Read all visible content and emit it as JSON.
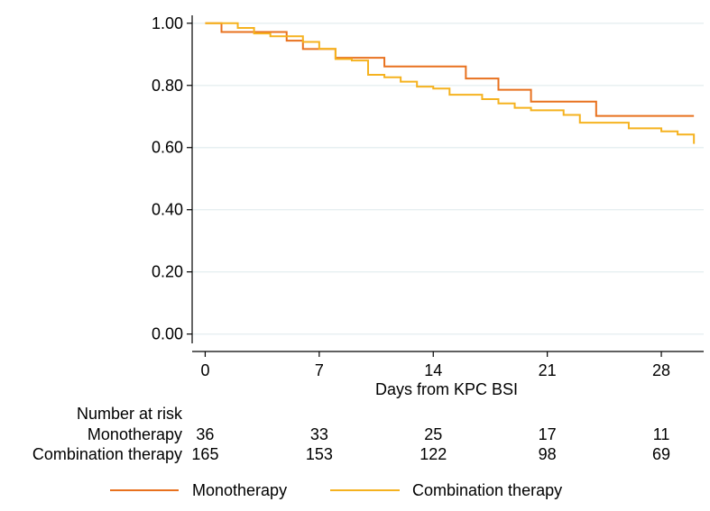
{
  "chart_data": {
    "type": "line",
    "subtype": "kaplan-meier",
    "xlabel": "Days from KPC BSI",
    "ylabel": "",
    "xlim": [
      -0.8,
      30.6
    ],
    "ylim": [
      -0.03,
      1.04
    ],
    "x_ticks": [
      0,
      7,
      14,
      21,
      28
    ],
    "x_tick_labels": [
      "0",
      "7",
      "14",
      "21",
      "28"
    ],
    "y_ticks": [
      0,
      0.2,
      0.4,
      0.6,
      0.8,
      1.0
    ],
    "y_tick_labels": [
      "0.00",
      "0.20",
      "0.40",
      "0.60",
      "0.80",
      "1.00"
    ],
    "grid": true,
    "series": [
      {
        "name": "Monotherapy",
        "color": "#E8711E",
        "steps": [
          [
            0,
            1.0
          ],
          [
            1,
            0.972
          ],
          [
            5,
            0.944
          ],
          [
            6,
            0.917
          ],
          [
            8,
            0.889
          ],
          [
            11,
            0.861
          ],
          [
            16,
            0.822
          ],
          [
            18,
            0.786
          ],
          [
            20,
            0.748
          ],
          [
            24,
            0.702
          ],
          [
            30,
            0.702
          ]
        ]
      },
      {
        "name": "Combination therapy",
        "color": "#F5B21F",
        "steps": [
          [
            0,
            1.0
          ],
          [
            2,
            0.985
          ],
          [
            3,
            0.967
          ],
          [
            4,
            0.958
          ],
          [
            5,
            0.958
          ],
          [
            6,
            0.94
          ],
          [
            7,
            0.918
          ],
          [
            8,
            0.885
          ],
          [
            9,
            0.88
          ],
          [
            10,
            0.834
          ],
          [
            11,
            0.826
          ],
          [
            12,
            0.812
          ],
          [
            13,
            0.796
          ],
          [
            14,
            0.79
          ],
          [
            15,
            0.77
          ],
          [
            17,
            0.756
          ],
          [
            18,
            0.742
          ],
          [
            19,
            0.728
          ],
          [
            20,
            0.72
          ],
          [
            22,
            0.705
          ],
          [
            23,
            0.68
          ],
          [
            26,
            0.662
          ],
          [
            28,
            0.652
          ],
          [
            29,
            0.642
          ],
          [
            30,
            0.612
          ]
        ]
      }
    ],
    "risk_table": {
      "title": "Number at risk",
      "times": [
        0,
        7,
        14,
        21,
        28
      ],
      "rows": [
        {
          "label": "Monotherapy",
          "values": [
            "36",
            "33",
            "25",
            "17",
            "11"
          ]
        },
        {
          "label": "Combination therapy",
          "values": [
            "165",
            "153",
            "122",
            "98",
            "69"
          ]
        }
      ]
    },
    "legend": {
      "position": "bottom",
      "entries": [
        "Monotherapy",
        "Combination therapy"
      ]
    }
  }
}
